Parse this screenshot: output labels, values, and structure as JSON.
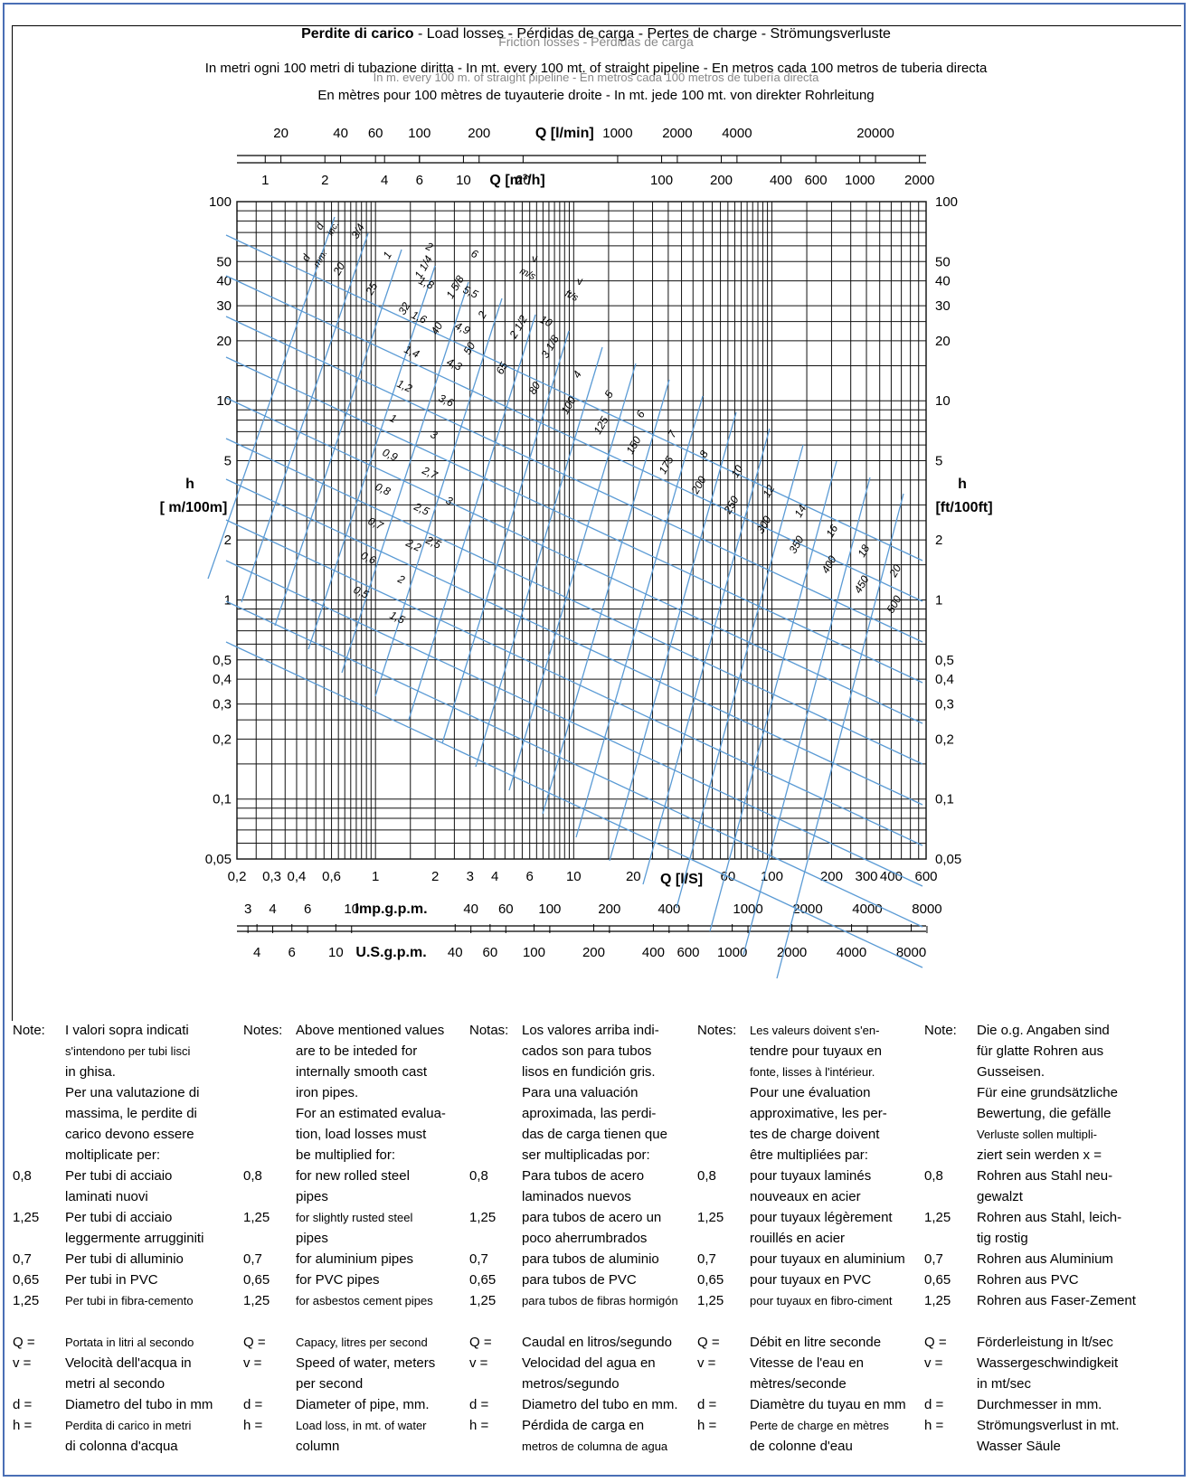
{
  "header": {
    "title_bold": "Perdite di carico",
    "title_rest": " - Load losses - Pérdidas de carga - Pertes de charge - Strömungsverluste",
    "title_ghost": "Friction losses - Pérdidas de carga",
    "line1": "In metri ogni 100 metri di tubazione diritta - In mt. every 100 mt. of straight pipeline - En metros cada 100 metros de tuberia directa",
    "line1_ghost": "In m. every 100 m. of straight pipeline - En metros cada 100 metros de tubería directa",
    "line2": "En mètres pour 100 mètres de tuyauterie droite - In mt. jede 100 mt. von direkter Rohrleitung"
  },
  "chart_data": {
    "type": "nomogram",
    "y_scale": "log",
    "x_scale": "log",
    "ylabel_left": [
      "h",
      "[ m/100m]"
    ],
    "ylabel_right": [
      "h",
      "[ft/100ft]"
    ],
    "y_ticks": [
      "100",
      "50",
      "40",
      "30",
      "20",
      "10",
      "5",
      "2",
      "1",
      "0,5",
      "0,4",
      "0,3",
      "0,2",
      "0,1",
      "0,05"
    ],
    "y_tick_values": [
      100,
      50,
      40,
      30,
      20,
      10,
      5,
      2,
      1,
      0.5,
      0.4,
      0.3,
      0.2,
      0.1,
      0.05
    ],
    "x_label": "Q [l/S]",
    "x_ticks": [
      "0,2",
      "0,3",
      "0,4",
      "0,6",
      "1",
      "2",
      "3",
      "4",
      "6",
      "10",
      "20",
      "60",
      "100",
      "200",
      "300",
      "400",
      "600"
    ],
    "x_tick_values": [
      0.2,
      0.3,
      0.4,
      0.6,
      1,
      2,
      3,
      4,
      6,
      10,
      20,
      60,
      100,
      200,
      300,
      400,
      600
    ],
    "ylim": [
      0.05,
      100
    ],
    "xlim": [
      0.2,
      600
    ],
    "top_axes": [
      {
        "label": "Q [l/min]",
        "ticks": [
          "20",
          "40",
          "60",
          "100",
          "200",
          "1000",
          "2000",
          "4000",
          "20000"
        ]
      },
      {
        "label": "Q [m³/h]",
        "ticks": [
          "1",
          "2",
          "4",
          "6",
          "10",
          "20",
          "100",
          "200",
          "400",
          "600",
          "1000",
          "2000"
        ]
      }
    ],
    "bottom_axes": [
      {
        "label": "Imp.g.p.m.",
        "ticks": [
          "3",
          "4",
          "6",
          "10",
          "40",
          "60",
          "100",
          "200",
          "400",
          "1000",
          "2000",
          "4000",
          "8000"
        ]
      },
      {
        "label": "U.S.g.p.m.",
        "ticks": [
          "4",
          "6",
          "10",
          "40",
          "60",
          "100",
          "200",
          "400",
          "600",
          "1000",
          "2000",
          "4000",
          "8000"
        ]
      }
    ],
    "diameter_header": [
      "d",
      "mm."
    ],
    "diameter_inch_header": [
      "d",
      "inc."
    ],
    "velocity_header": [
      "v",
      "m/s"
    ],
    "velocity_ft_header": [
      "v",
      "ft/s"
    ],
    "diameters_mm": [
      "20",
      "25",
      "32",
      "40",
      "50",
      "65",
      "80",
      "100",
      "125",
      "150",
      "175",
      "200",
      "250",
      "300",
      "350",
      "400",
      "450",
      "500"
    ],
    "diameters_in": [
      "3/4",
      "1",
      "1 1/4",
      "1 5/8",
      "2",
      "2 1/2",
      "3 1/8",
      "4",
      "5",
      "6",
      "7",
      "8",
      "10",
      "12",
      "14",
      "16",
      "18",
      "20"
    ],
    "velocities_ms": [
      "0,5",
      "0,6",
      "0,7",
      "0,8",
      "0,9",
      "1",
      "1,2",
      "1,4",
      "1,6",
      "1,8",
      "2"
    ],
    "velocities_ms_2": [
      "1,5",
      "2",
      "2,2",
      "2,5",
      "2,7",
      "3",
      "3,6",
      "4,3",
      "4,9",
      "5,5",
      "6"
    ],
    "velocities_fts": [
      "2,5",
      "3",
      "10"
    ]
  },
  "notes": {
    "it": {
      "head": "Note:",
      "text": [
        "I valori sopra indicati",
        "s'intendono per tubi lisci",
        "in ghisa.",
        "Per una valutazione di",
        "massima, le perdite di",
        "carico devono essere",
        "moltiplicate per:"
      ],
      "factors": [
        {
          "k": "0,8",
          "v": [
            "Per tubi di acciaio",
            "laminati nuovi"
          ]
        },
        {
          "k": "1,25",
          "v": [
            "Per tubi di acciaio",
            "leggermente arrugginiti"
          ]
        },
        {
          "k": "0,7",
          "v": [
            "Per tubi di alluminio"
          ]
        },
        {
          "k": "0,65",
          "v": [
            "Per tubi in PVC"
          ]
        },
        {
          "k": "1,25",
          "v": [
            "Per tubi in fibra-cemento"
          ]
        }
      ],
      "legend": [
        {
          "k": "Q =",
          "v": [
            "Portata in litri al secondo"
          ]
        },
        {
          "k": "v =",
          "v": [
            "Velocità dell'acqua in",
            "metri al secondo"
          ]
        },
        {
          "k": "d =",
          "v": [
            "Diametro del tubo in mm"
          ]
        },
        {
          "k": "h =",
          "v": [
            "Perdita di carico in metri",
            "di colonna d'acqua"
          ]
        }
      ]
    },
    "en": {
      "head": "Notes:",
      "text": [
        "Above mentioned values",
        "are to be inteded for",
        "internally smooth cast",
        "iron pipes.",
        "For an estimated evalua-",
        "tion, load losses must",
        "be multiplied for:"
      ],
      "factors": [
        {
          "k": "0,8",
          "v": [
            "for new rolled steel",
            "pipes"
          ]
        },
        {
          "k": "1,25",
          "v": [
            "for slightly rusted steel",
            "pipes"
          ]
        },
        {
          "k": "0,7",
          "v": [
            "for aluminium pipes"
          ]
        },
        {
          "k": "0,65",
          "v": [
            "for PVC pipes"
          ]
        },
        {
          "k": "1,25",
          "v": [
            "for asbestos cement pipes"
          ]
        }
      ],
      "legend": [
        {
          "k": "Q =",
          "v": [
            "Capacy, litres per second"
          ]
        },
        {
          "k": "v =",
          "v": [
            "Speed of water, meters",
            "per second"
          ]
        },
        {
          "k": "d =",
          "v": [
            "Diameter of pipe, mm."
          ]
        },
        {
          "k": "h =",
          "v": [
            "Load loss, in mt. of water",
            "column"
          ]
        }
      ]
    },
    "es": {
      "head": "Notas:",
      "text": [
        "Los valores arriba indi-",
        "cados son para tubos",
        "lisos en fundición gris.",
        "Para una valuación",
        "aproximada, las perdi-",
        "das de carga tienen que",
        "ser multiplicadas por:"
      ],
      "factors": [
        {
          "k": "0,8",
          "v": [
            "Para tubos de acero",
            "laminados nuevos"
          ]
        },
        {
          "k": "1,25",
          "v": [
            "para tubos de acero un",
            "poco aherrumbrados"
          ]
        },
        {
          "k": "0,7",
          "v": [
            "para tubos de aluminio"
          ]
        },
        {
          "k": "0,65",
          "v": [
            "para tubos de PVC"
          ]
        },
        {
          "k": "1,25",
          "v": [
            "para tubos de fibras hormigón"
          ]
        }
      ],
      "legend": [
        {
          "k": "Q =",
          "v": [
            "Caudal en litros/segundo"
          ]
        },
        {
          "k": "v =",
          "v": [
            "Velocidad del agua en",
            "metros/segundo"
          ]
        },
        {
          "k": "d =",
          "v": [
            "Diametro del tubo en mm."
          ]
        },
        {
          "k": "h =",
          "v": [
            "Pérdida de carga en",
            "metros de columna de agua"
          ]
        }
      ]
    },
    "fr": {
      "head": "Notes:",
      "text": [
        "Les valeurs doivent s'en-",
        "tendre pour tuyaux en",
        "fonte, lisses à l'intérieur.",
        "Pour une évaluation",
        "approximative, les per-",
        "tes de charge doivent",
        "être multipliées par:"
      ],
      "factors": [
        {
          "k": "0,8",
          "v": [
            "pour tuyaux laminés",
            "nouveaux en acier"
          ]
        },
        {
          "k": "1,25",
          "v": [
            "pour tuyaux légèrement",
            "rouillés en acier"
          ]
        },
        {
          "k": "0,7",
          "v": [
            "pour tuyaux en aluminium"
          ]
        },
        {
          "k": "0,65",
          "v": [
            "pour tuyaux en PVC"
          ]
        },
        {
          "k": "1,25",
          "v": [
            "pour tuyaux en fibro-ciment"
          ]
        }
      ],
      "legend": [
        {
          "k": "Q =",
          "v": [
            "Débit en litre seconde"
          ]
        },
        {
          "k": "v =",
          "v": [
            "Vitesse de l'eau en",
            "mètres/seconde"
          ]
        },
        {
          "k": "d =",
          "v": [
            "Diamètre du tuyau en mm"
          ]
        },
        {
          "k": "h =",
          "v": [
            "Perte de charge en mètres",
            "de colonne d'eau"
          ]
        }
      ]
    },
    "de": {
      "head": "Note:",
      "text": [
        "Die o.g. Angaben sind",
        "für glatte Rohren aus",
        "Gusseisen.",
        "Für eine grundsätzliche",
        "Bewertung, die gefälle",
        "Verluste sollen multipli-",
        "ziert sein werden x ="
      ],
      "factors": [
        {
          "k": "0,8",
          "v": [
            "Rohren aus Stahl neu-",
            "gewalzt"
          ]
        },
        {
          "k": "1,25",
          "v": [
            "Rohren aus Stahl, leich-",
            "tig rostig"
          ]
        },
        {
          "k": "0,7",
          "v": [
            "Rohren aus Aluminium"
          ]
        },
        {
          "k": "0,65",
          "v": [
            "Rohren aus PVC"
          ]
        },
        {
          "k": "1,25",
          "v": [
            "Rohren aus Faser-Zement"
          ]
        }
      ],
      "legend": [
        {
          "k": "Q =",
          "v": [
            "Förderleistung in lt/sec"
          ]
        },
        {
          "k": "v =",
          "v": [
            "Wassergeschwindigkeit",
            "in mt/sec"
          ]
        },
        {
          "k": "d =",
          "v": [
            "Durchmesser in mm."
          ]
        },
        {
          "k": "h =",
          "v": [
            "Strömungsverlust in mt.",
            "Wasser Säule"
          ]
        }
      ]
    }
  }
}
